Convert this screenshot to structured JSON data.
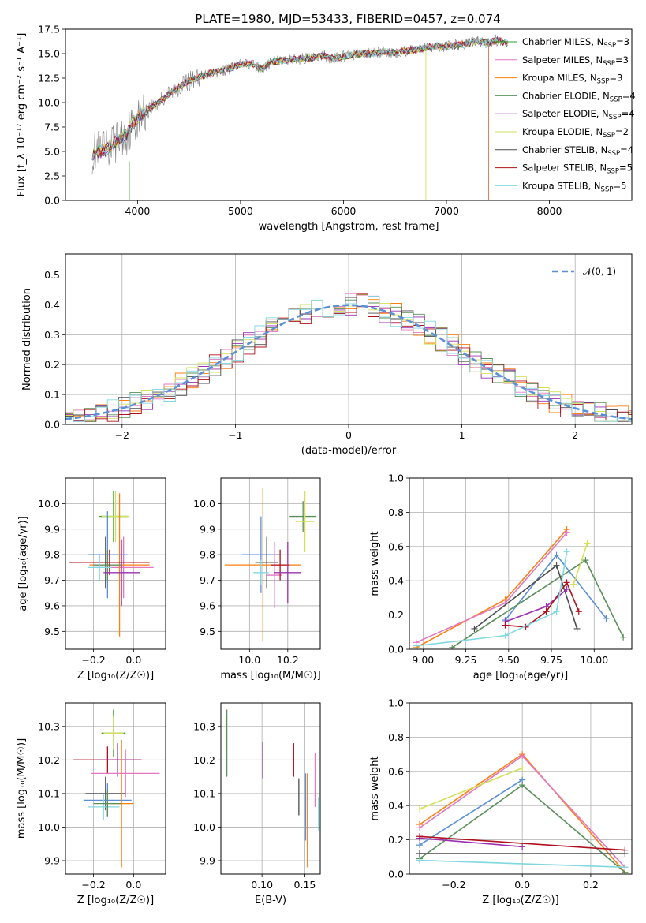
{
  "title": "PLATE=1980, MJD=53433, FIBERID=0457, z=0.074",
  "colors": {
    "Chabrier MILES": "#2ca02c",
    "Salpeter MILES": "#e377c2",
    "Kroupa MILES": "#ff7f0e",
    "Chabrier ELODIE": "#5a8f5a",
    "Salpeter ELODIE": "#9b30b0",
    "Kroupa ELODIE": "#d4e05a",
    "Chabrier STELIB": "#4d4d4d",
    "Salpeter STELIB": "#b0101e",
    "Kroupa STELIB": "#80d8e0",
    "data": "#808080",
    "normal": "#5b8fd6"
  },
  "chart_data": [
    {
      "id": "spectrum",
      "type": "line",
      "title": "PLATE=1980, MJD=53433, FIBERID=0457, z=0.074",
      "xlabel": "wavelength [Angstrom, rest frame]",
      "ylabel": "Flux [f_λ 10⁻¹⁷ erg cm⁻² s⁻¹ A⁻¹]",
      "xlim": [
        3300,
        8800
      ],
      "ylim": [
        0,
        17.5
      ],
      "xticks": [
        "4000",
        "5000",
        "6000",
        "7000",
        "8000"
      ],
      "yticks": [
        "0.0",
        "2.5",
        "5.0",
        "7.5",
        "10.0",
        "12.5",
        "15.0",
        "17.5"
      ],
      "legend": [
        {
          "label": "Chabrier MILES, N",
          "sub": "SSP",
          "tail": "=3",
          "color": "#2ca02c"
        },
        {
          "label": "Salpeter MILES, N",
          "sub": "SSP",
          "tail": "=3",
          "color": "#e377c2"
        },
        {
          "label": "Kroupa MILES, N",
          "sub": "SSP",
          "tail": "=3",
          "color": "#ff7f0e"
        },
        {
          "label": "Chabrier ELODIE, N",
          "sub": "SSP",
          "tail": "=4",
          "color": "#5a8f5a"
        },
        {
          "label": "Salpeter ELODIE, N",
          "sub": "SSP",
          "tail": "=4",
          "color": "#9b30b0"
        },
        {
          "label": "Kroupa ELODIE, N",
          "sub": "SSP",
          "tail": "=2",
          "color": "#d4e05a"
        },
        {
          "label": "Chabrier STELIB, N",
          "sub": "SSP",
          "tail": "=4",
          "color": "#4d4d4d"
        },
        {
          "label": "Salpeter STELIB, N",
          "sub": "SSP",
          "tail": "=5",
          "color": "#b0101e"
        },
        {
          "label": "Kroupa STELIB, N",
          "sub": "SSP",
          "tail": "=5",
          "color": "#80d8e0"
        }
      ],
      "continuum": [
        [
          3560,
          4.8
        ],
        [
          3700,
          5.2
        ],
        [
          3800,
          6.0
        ],
        [
          3900,
          6.8
        ],
        [
          3950,
          7.8
        ],
        [
          4000,
          8.5
        ],
        [
          4100,
          9.3
        ],
        [
          4200,
          10.0
        ],
        [
          4300,
          10.8
        ],
        [
          4400,
          11.6
        ],
        [
          4500,
          12.2
        ],
        [
          4600,
          12.6
        ],
        [
          4700,
          13.0
        ],
        [
          4800,
          13.2
        ],
        [
          4900,
          13.5
        ],
        [
          5000,
          13.9
        ],
        [
          5100,
          14.0
        ],
        [
          5200,
          13.4
        ],
        [
          5300,
          14.1
        ],
        [
          5400,
          14.3
        ],
        [
          5500,
          14.4
        ],
        [
          5600,
          14.5
        ],
        [
          5700,
          14.6
        ],
        [
          5800,
          14.8
        ],
        [
          5900,
          14.5
        ],
        [
          6000,
          14.7
        ],
        [
          6100,
          14.9
        ],
        [
          6200,
          15.0
        ],
        [
          6300,
          15.0
        ],
        [
          6400,
          15.2
        ],
        [
          6500,
          15.1
        ],
        [
          6600,
          15.3
        ],
        [
          6700,
          15.4
        ],
        [
          6800,
          15.6
        ],
        [
          6900,
          15.8
        ],
        [
          7000,
          15.7
        ],
        [
          7100,
          15.9
        ],
        [
          7200,
          16.0
        ],
        [
          7300,
          16.3
        ],
        [
          7400,
          16.1
        ],
        [
          7500,
          16.4
        ],
        [
          7600,
          16.0
        ]
      ]
    },
    {
      "id": "residual-histogram",
      "type": "bar",
      "xlabel": "(data-model)/error",
      "ylabel": "Normed distribution",
      "xlim": [
        -2.5,
        2.5
      ],
      "ylim": [
        0,
        0.57
      ],
      "xticks": [
        "−2",
        "−1",
        "0",
        "1",
        "2"
      ],
      "yticks": [
        "0.0",
        "0.1",
        "0.2",
        "0.3",
        "0.4",
        "0.5"
      ],
      "legend": [
        {
          "label": "𝒩(0, 1)",
          "color": "#5b8fd6"
        }
      ]
    },
    {
      "id": "age-vs-Z",
      "type": "scatter",
      "xlabel": "Z [log₁₀(Z/Z☉)]",
      "ylabel": "age  [log₁₀(age/yr)]",
      "xlim": [
        -0.34,
        0.16
      ],
      "ylim": [
        9.43,
        10.1
      ],
      "xticks": [
        "−0.2",
        "0.0"
      ],
      "yticks": [
        "9.5",
        "9.6",
        "9.7",
        "9.8",
        "9.9",
        "10.0"
      ],
      "points": [
        {
          "x": -0.1,
          "y": 9.95,
          "xerr": 0.07,
          "yerr": 0.1,
          "color": "#2ca02c"
        },
        {
          "x": -0.09,
          "y": 9.95,
          "xerr": 0.07,
          "yerr": 0.1,
          "color": "#d4e05a"
        },
        {
          "x": -0.13,
          "y": 9.8,
          "xerr": 0.1,
          "yerr": 0.17,
          "color": "#5b8fd6"
        },
        {
          "x": -0.05,
          "y": 9.75,
          "xerr": 0.15,
          "yerr": 0.12,
          "color": "#e377c2"
        },
        {
          "x": -0.07,
          "y": 9.76,
          "xerr": 0.15,
          "yerr": 0.28,
          "color": "#ff7f0e"
        },
        {
          "x": -0.14,
          "y": 9.77,
          "xerr": 0.08,
          "yerr": 0.1,
          "color": "#4d4d4d"
        },
        {
          "x": -0.13,
          "y": 9.76,
          "xerr": 0.07,
          "yerr": 0.06,
          "color": "#5a8f5a"
        },
        {
          "x": -0.12,
          "y": 9.77,
          "xerr": 0.2,
          "yerr": 0.05,
          "color": "#b0101e"
        },
        {
          "x": -0.06,
          "y": 9.73,
          "xerr": 0.09,
          "yerr": 0.13,
          "color": "#9b30b0"
        },
        {
          "x": -0.17,
          "y": 9.75,
          "xerr": 0.06,
          "yerr": 0.05,
          "color": "#80d8e0"
        }
      ]
    },
    {
      "id": "age-vs-mass",
      "type": "scatter",
      "xlabel": "mass [log₁₀(M/M☉)]",
      "xlim": [
        9.85,
        10.37
      ],
      "ylim": [
        9.43,
        10.1
      ],
      "xticks": [
        "10.0",
        "10.2"
      ],
      "yticks": [
        "9.5",
        "9.6",
        "9.7",
        "9.8",
        "9.9",
        "10.0"
      ],
      "points": [
        {
          "x": 10.28,
          "y": 9.95,
          "xerr": 0.07,
          "yerr": 0.06,
          "color": "#5a8f5a"
        },
        {
          "x": 10.29,
          "y": 9.93,
          "xerr": 0.05,
          "yerr": 0.12,
          "color": "#d4e05a"
        },
        {
          "x": 10.06,
          "y": 9.8,
          "xerr": 0.1,
          "yerr": 0.15,
          "color": "#5b8fd6"
        },
        {
          "x": 10.09,
          "y": 9.77,
          "xerr": 0.06,
          "yerr": 0.1,
          "color": "#4d4d4d"
        },
        {
          "x": 10.13,
          "y": 9.72,
          "xerr": 0.04,
          "yerr": 0.13,
          "color": "#e377c2"
        },
        {
          "x": 10.07,
          "y": 9.76,
          "xerr": 0.2,
          "yerr": 0.3,
          "color": "#ff7f0e"
        },
        {
          "x": 10.16,
          "y": 9.76,
          "xerr": 0.05,
          "yerr": 0.06,
          "color": "#b0101e"
        },
        {
          "x": 10.2,
          "y": 9.73,
          "xerr": 0.07,
          "yerr": 0.12,
          "color": "#9b30b0"
        },
        {
          "x": 10.06,
          "y": 9.73,
          "xerr": 0.04,
          "yerr": 0.05,
          "color": "#80d8e0"
        }
      ]
    },
    {
      "id": "weight-vs-age",
      "type": "line",
      "xlabel": "age  [log₁₀(age/yr)]",
      "ylabel": "mass weight",
      "xlim": [
        8.92,
        10.22
      ],
      "ylim": [
        0,
        1.0
      ],
      "xticks": [
        "9.00",
        "9.25",
        "9.50",
        "9.75",
        "10.00"
      ],
      "yticks": [
        "0.0",
        "0.2",
        "0.4",
        "0.6",
        "0.8",
        "1.0"
      ],
      "series": [
        {
          "color": "#ff7f0e",
          "x": [
            8.96,
            9.48,
            9.84
          ],
          "y": [
            0.01,
            0.29,
            0.7
          ]
        },
        {
          "color": "#e377c2",
          "x": [
            8.96,
            9.48,
            9.84
          ],
          "y": [
            0.04,
            0.27,
            0.68
          ]
        },
        {
          "color": "#5b8fd6",
          "x": [
            9.48,
            9.78,
            10.07
          ],
          "y": [
            0.17,
            0.55,
            0.18
          ]
        },
        {
          "color": "#5a8f5a",
          "x": [
            9.17,
            9.95,
            10.17
          ],
          "y": [
            0.01,
            0.52,
            0.07
          ]
        },
        {
          "color": "#4d4d4d",
          "x": [
            9.3,
            9.78,
            9.9
          ],
          "y": [
            0.12,
            0.49,
            0.12
          ]
        },
        {
          "color": "#d4e05a",
          "x": [
            9.88,
            9.96
          ],
          "y": [
            0.38,
            0.62
          ]
        },
        {
          "color": "#9b30b0",
          "x": [
            9.48,
            9.72,
            9.84
          ],
          "y": [
            0.16,
            0.25,
            0.35
          ]
        },
        {
          "color": "#b0101e",
          "x": [
            9.48,
            9.6,
            9.72,
            9.84,
            9.91
          ],
          "y": [
            0.14,
            0.13,
            0.22,
            0.39,
            0.22
          ]
        },
        {
          "color": "#80d8e0",
          "x": [
            8.96,
            9.48,
            9.78,
            9.84
          ],
          "y": [
            0.02,
            0.08,
            0.22,
            0.57
          ]
        }
      ]
    },
    {
      "id": "mass-vs-Z",
      "type": "scatter",
      "xlabel": "Z [log₁₀(Z/Z☉)]",
      "ylabel": "mass [log₁₀(M/M☉)]",
      "xlim": [
        -0.34,
        0.16
      ],
      "ylim": [
        9.86,
        10.37
      ],
      "xticks": [
        "−0.2",
        "0.0"
      ],
      "yticks": [
        "9.9",
        "10.0",
        "10.1",
        "10.2",
        "10.3"
      ],
      "points": [
        {
          "x": -0.1,
          "y": 10.28,
          "xerr": 0.06,
          "yerr": 0.07,
          "color": "#2ca02c"
        },
        {
          "x": -0.1,
          "y": 10.28,
          "xerr": 0.05,
          "yerr": 0.05,
          "color": "#d4e05a"
        },
        {
          "x": -0.13,
          "y": 10.2,
          "xerr": 0.17,
          "yerr": 0.04,
          "color": "#b0101e"
        },
        {
          "x": -0.08,
          "y": 10.2,
          "xerr": 0.1,
          "yerr": 0.05,
          "color": "#9b30b0"
        },
        {
          "x": -0.04,
          "y": 10.16,
          "xerr": 0.17,
          "yerr": 0.07,
          "color": "#e377c2"
        },
        {
          "x": -0.14,
          "y": 10.1,
          "xerr": 0.1,
          "yerr": 0.05,
          "color": "#4d4d4d"
        },
        {
          "x": -0.13,
          "y": 10.08,
          "xerr": 0.12,
          "yerr": 0.05,
          "color": "#5b8fd6"
        },
        {
          "x": -0.06,
          "y": 10.07,
          "xerr": 0.06,
          "yerr": 0.19,
          "color": "#ff7f0e"
        },
        {
          "x": -0.15,
          "y": 10.06,
          "xerr": 0.08,
          "yerr": 0.04,
          "color": "#80d8e0"
        },
        {
          "x": -0.13,
          "y": 10.07,
          "xerr": 0.07,
          "yerr": 0.04,
          "color": "#5a8f5a"
        }
      ]
    },
    {
      "id": "mass-vs-ebv",
      "type": "scatter",
      "xlabel": "E(B-V)",
      "xlim": [
        0.052,
        0.168
      ],
      "ylim": [
        9.86,
        10.37
      ],
      "xticks": [
        "0.10",
        "0.15"
      ],
      "yticks": [
        "9.9",
        "10.0",
        "10.1",
        "10.2",
        "10.3"
      ],
      "points": [
        {
          "x": 0.058,
          "y": 10.28,
          "yerr": 0.05,
          "color": "#d4e05a"
        },
        {
          "x": 0.059,
          "y": 10.25,
          "yerr": 0.1,
          "color": "#5a8f5a"
        },
        {
          "x": 0.101,
          "y": 10.2,
          "yerr": 0.055,
          "color": "#9b30b0"
        },
        {
          "x": 0.137,
          "y": 10.2,
          "yerr": 0.05,
          "color": "#b0101e"
        },
        {
          "x": 0.143,
          "y": 10.09,
          "yerr": 0.055,
          "color": "#4d4d4d"
        },
        {
          "x": 0.151,
          "y": 10.06,
          "yerr": 0.1,
          "color": "#5b8fd6"
        },
        {
          "x": 0.153,
          "y": 10.02,
          "yerr": 0.14,
          "color": "#ff7f0e"
        },
        {
          "x": 0.162,
          "y": 10.14,
          "yerr": 0.08,
          "color": "#e377c2"
        },
        {
          "x": 0.166,
          "y": 10.04,
          "yerr": 0.05,
          "color": "#80d8e0"
        }
      ]
    },
    {
      "id": "weight-vs-Z",
      "type": "line",
      "xlabel": "Z [log₁₀(Z/Z☉)]",
      "ylabel": "mass weight",
      "xlim": [
        -0.33,
        0.32
      ],
      "ylim": [
        0,
        1.0
      ],
      "xticks": [
        "−0.2",
        "0.0",
        "0.2"
      ],
      "yticks": [
        "0.0",
        "0.2",
        "0.4",
        "0.6",
        "0.8",
        "1.0"
      ],
      "series": [
        {
          "color": "#ff7f0e",
          "x": [
            -0.3,
            0.0,
            0.3
          ],
          "y": [
            0.29,
            0.7,
            0.01
          ]
        },
        {
          "color": "#e377c2",
          "x": [
            -0.3,
            0.0,
            0.3
          ],
          "y": [
            0.27,
            0.69,
            0.04
          ]
        },
        {
          "color": "#5b8fd6",
          "x": [
            -0.3,
            0.0
          ],
          "y": [
            0.17,
            0.55
          ]
        },
        {
          "color": "#5a8f5a",
          "x": [
            -0.3,
            0.0,
            0.3
          ],
          "y": [
            0.09,
            0.52,
            0.01
          ]
        },
        {
          "color": "#d4e05a",
          "x": [
            -0.3,
            0.0
          ],
          "y": [
            0.38,
            0.62
          ]
        },
        {
          "color": "#9b30b0",
          "x": [
            -0.3,
            0.0
          ],
          "y": [
            0.21,
            0.16
          ]
        },
        {
          "color": "#b0101e",
          "x": [
            -0.3,
            0.3
          ],
          "y": [
            0.22,
            0.14
          ]
        },
        {
          "color": "#4d4d4d",
          "x": [
            -0.3,
            0.3
          ],
          "y": [
            0.12,
            0.12
          ]
        },
        {
          "color": "#80d8e0",
          "x": [
            -0.3,
            0.3
          ],
          "y": [
            0.08,
            0.04
          ]
        }
      ]
    }
  ]
}
